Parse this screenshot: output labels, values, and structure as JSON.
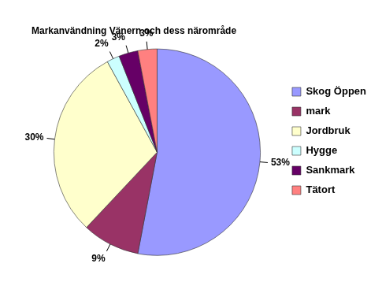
{
  "chart_data": {
    "type": "pie",
    "title": "Markanvändning Vänern och dess närområde",
    "categories": [
      "Skog Öppen",
      "mark",
      "Jordbruk",
      "Hygge",
      "Sankmark",
      "Tätort"
    ],
    "values": [
      53,
      9,
      30,
      2,
      3,
      3
    ],
    "value_labels": [
      "53%",
      "9%",
      "30%",
      "2%",
      "3%",
      "3%"
    ],
    "colors": [
      "#9999ff",
      "#993366",
      "#ffffcc",
      "#ccffff",
      "#660066",
      "#ff8080"
    ],
    "legend": "right",
    "data_labels": true
  }
}
